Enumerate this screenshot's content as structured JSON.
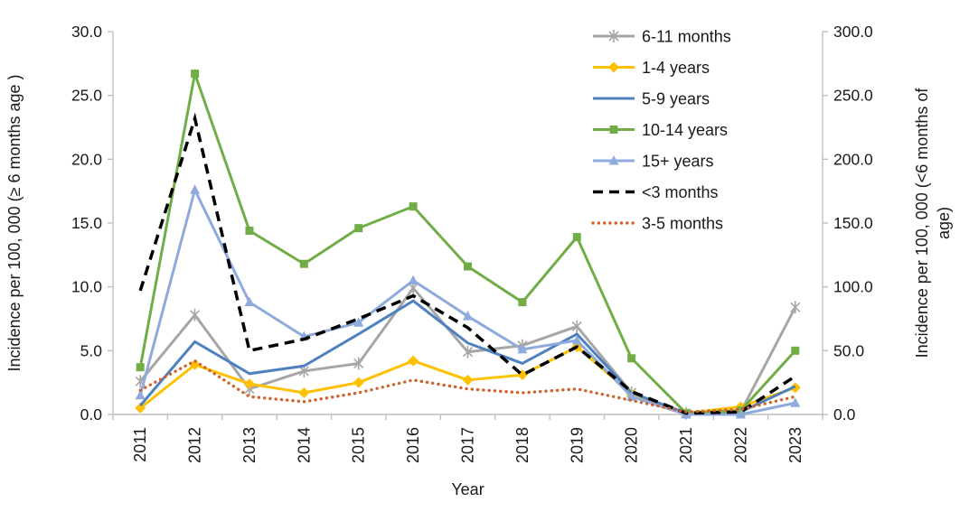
{
  "chart_data": {
    "type": "line",
    "xlabel": "Year",
    "ylabel_left": "Incidence per 100, 000 (≥ 6 months age )",
    "ylabel_right_lines": [
      "Incidence per 100, 000 (<6 months of",
      "age)"
    ],
    "categories": [
      "2011",
      "2012",
      "2013",
      "2014",
      "2015",
      "2016",
      "2017",
      "2018",
      "2019",
      "2020",
      "2021",
      "2022",
      "2023"
    ],
    "left_axis": {
      "min": 0,
      "max": 30,
      "step": 5,
      "tick_labels": [
        "0.0",
        "5.0",
        "10.0",
        "15.0",
        "20.0",
        "25.0",
        "30.0"
      ]
    },
    "right_axis": {
      "min": 0,
      "max": 300,
      "step": 50,
      "tick_labels": [
        "0.0",
        "50.0",
        "100.0",
        "150.0",
        "200.0",
        "250.0",
        "300.0"
      ]
    },
    "grid": false,
    "legend_position": "top-right-inside",
    "series": [
      {
        "name": "6-11 months",
        "axis": "left",
        "color": "#a6a6a6",
        "marker": "asterisk",
        "dash": "solid",
        "values": [
          2.6,
          7.8,
          2.0,
          3.4,
          4.0,
          9.9,
          4.9,
          5.4,
          6.9,
          1.7,
          0.1,
          0.2,
          8.4
        ]
      },
      {
        "name": "1-4 years",
        "axis": "left",
        "color": "#ffc000",
        "marker": "diamond",
        "dash": "solid",
        "values": [
          0.5,
          3.9,
          2.4,
          1.7,
          2.5,
          4.2,
          2.7,
          3.1,
          5.3,
          1.6,
          0.1,
          0.6,
          2.1
        ]
      },
      {
        "name": "5-9 years",
        "axis": "left",
        "color": "#4e81bd",
        "marker": "none",
        "dash": "solid",
        "values": [
          0.7,
          5.7,
          3.2,
          3.8,
          6.3,
          8.9,
          5.6,
          4.0,
          6.3,
          1.7,
          0.1,
          0.2,
          2.2
        ]
      },
      {
        "name": "10-14 years",
        "axis": "left",
        "color": "#70ad47",
        "marker": "square",
        "dash": "solid",
        "values": [
          3.7,
          26.7,
          14.4,
          11.8,
          14.6,
          16.3,
          11.6,
          8.8,
          13.9,
          4.4,
          0.1,
          0.3,
          5.0
        ]
      },
      {
        "name": "15+ years",
        "axis": "left",
        "color": "#8faadc",
        "marker": "triangle",
        "dash": "solid",
        "values": [
          1.5,
          17.6,
          8.8,
          6.1,
          7.2,
          10.5,
          7.7,
          5.1,
          5.8,
          1.4,
          0.0,
          0.0,
          0.9
        ]
      },
      {
        "name": "<3 months",
        "axis": "right",
        "color": "#000000",
        "marker": "none",
        "dash": "dashed",
        "values": [
          97,
          232,
          50,
          59,
          75,
          93,
          68,
          31,
          53,
          18,
          1,
          2,
          30
        ]
      },
      {
        "name": "3-5 months",
        "axis": "right",
        "color": "#d0622b",
        "marker": "none",
        "dash": "dotted",
        "values": [
          19,
          42,
          14,
          10,
          17,
          27,
          20,
          17,
          20,
          11,
          2,
          4,
          14
        ]
      }
    ],
    "axis_line_color": "#bfbfbf"
  }
}
